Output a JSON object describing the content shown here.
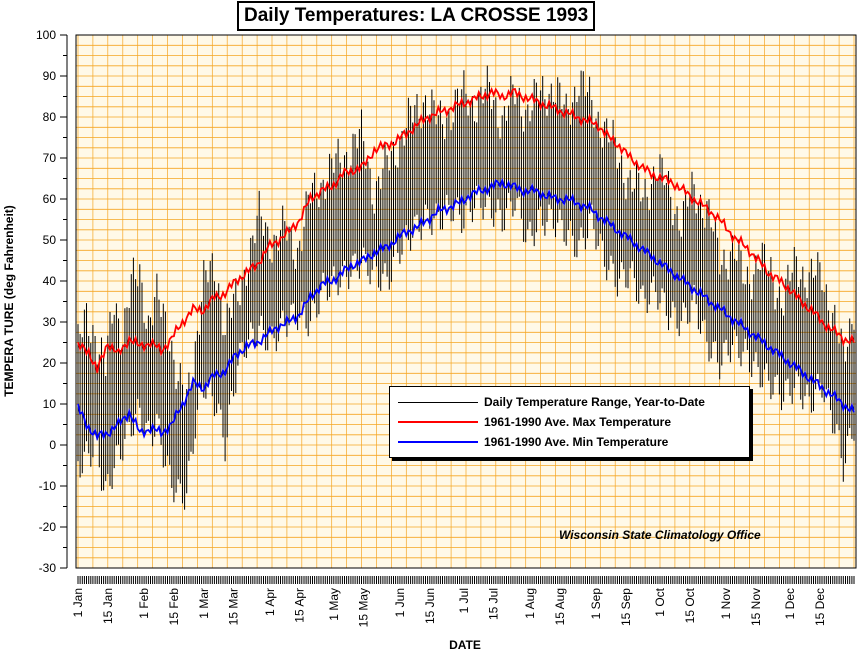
{
  "chart_data": {
    "type": "line",
    "title": "Daily Temperatures: LA CROSSE 1993",
    "xlabel": "DATE",
    "ylabel": "TEMPERA TURE (deg Fahrenheit)",
    "ylim": [
      -30,
      100
    ],
    "yticks": [
      -30,
      -20,
      -10,
      0,
      10,
      20,
      30,
      40,
      50,
      60,
      70,
      80,
      90,
      100
    ],
    "x_range_days": [
      1,
      365
    ],
    "xtick_labels": [
      "1 Jan",
      "15 Jan",
      "1 Feb",
      "15 Feb",
      "1 Mar",
      "15 Mar",
      "1 Apr",
      "15 Apr",
      "1 May",
      "15 May",
      "1 Jun",
      "15 Jun",
      "1 Jul",
      "15 Jul",
      "1 Aug",
      "15 Aug",
      "1 Sep",
      "15 Sep",
      "1 Oct",
      "15 Oct",
      "1 Nov",
      "15 Nov",
      "1 Dec",
      "15 Dec"
    ],
    "xtick_days": [
      1,
      15,
      32,
      46,
      60,
      74,
      91,
      105,
      121,
      135,
      152,
      166,
      182,
      196,
      213,
      227,
      244,
      258,
      274,
      288,
      305,
      319,
      335,
      349
    ],
    "grid": true,
    "legend_position": "lower-center",
    "colors": {
      "plot_bg": "#fff9e8",
      "grid": "#f5a623",
      "range": "#000000",
      "max": "#ff0000",
      "min": "#0000ff"
    },
    "series": [
      {
        "name": "Daily Temperature Range, Year-to-Date",
        "kind": "range",
        "color": "#000000",
        "anchors": {
          "days": [
            1,
            5,
            9,
            14,
            18,
            22,
            26,
            30,
            34,
            38,
            44,
            48,
            52,
            56,
            60,
            66,
            70,
            76,
            80,
            86,
            92,
            98,
            104,
            110,
            116,
            122,
            128,
            134,
            140,
            146,
            152,
            158,
            164,
            170,
            176,
            182,
            188,
            194,
            200,
            206,
            212,
            218,
            224,
            230,
            236,
            242,
            248,
            254,
            260,
            266,
            272,
            278,
            284,
            290,
            296,
            302,
            308,
            314,
            320,
            326,
            332,
            338,
            344,
            350,
            356,
            360,
            365
          ],
          "high": [
            24,
            30,
            28,
            18,
            35,
            28,
            38,
            42,
            30,
            35,
            28,
            15,
            10,
            25,
            40,
            42,
            30,
            35,
            45,
            55,
            50,
            52,
            48,
            60,
            65,
            68,
            72,
            75,
            62,
            68,
            75,
            80,
            85,
            78,
            82,
            85,
            84,
            86,
            80,
            85,
            82,
            85,
            88,
            80,
            90,
            82,
            78,
            70,
            65,
            60,
            68,
            62,
            55,
            62,
            58,
            45,
            48,
            40,
            45,
            42,
            35,
            45,
            40,
            42,
            30,
            20,
            35
          ],
          "low": [
            -5,
            -3,
            0,
            -12,
            -5,
            0,
            5,
            8,
            2,
            5,
            -8,
            -12,
            -12,
            5,
            15,
            10,
            0,
            20,
            25,
            28,
            25,
            30,
            32,
            30,
            38,
            40,
            42,
            45,
            42,
            40,
            48,
            52,
            55,
            55,
            58,
            55,
            60,
            58,
            55,
            60,
            50,
            55,
            55,
            52,
            48,
            55,
            45,
            40,
            42,
            35,
            38,
            32,
            30,
            35,
            25,
            20,
            25,
            22,
            18,
            15,
            12,
            15,
            10,
            15,
            5,
            -5,
            5
          ]
        }
      },
      {
        "name": "1961-1990 Ave. Max Temperature",
        "kind": "line",
        "color": "#ff0000",
        "anchors": {
          "days": [
            1,
            6,
            10,
            15,
            20,
            25,
            30,
            35,
            40,
            45,
            50,
            55,
            60,
            65,
            70,
            75,
            80,
            85,
            90,
            95,
            100,
            105,
            110,
            115,
            120,
            125,
            130,
            135,
            140,
            145,
            150,
            155,
            160,
            165,
            170,
            175,
            180,
            185,
            190,
            195,
            200,
            205,
            210,
            215,
            220,
            225,
            230,
            235,
            240,
            245,
            250,
            255,
            260,
            265,
            270,
            275,
            280,
            285,
            290,
            295,
            300,
            305,
            310,
            315,
            320,
            325,
            330,
            335,
            340,
            345,
            350,
            355,
            360,
            365
          ],
          "values": [
            24,
            23,
            18,
            25,
            22,
            26,
            24,
            25,
            23,
            26,
            30,
            33,
            33,
            36,
            37,
            40,
            42,
            44,
            48,
            50,
            52,
            55,
            60,
            62,
            63,
            66,
            67,
            68,
            72,
            73,
            74,
            76,
            78,
            80,
            81,
            82,
            83,
            84,
            85,
            86,
            85,
            86,
            85,
            84,
            83,
            82,
            81,
            80,
            79,
            78,
            75,
            73,
            70,
            68,
            66,
            65,
            64,
            62,
            60,
            58,
            56,
            53,
            50,
            48,
            45,
            42,
            40,
            38,
            35,
            33,
            30,
            28,
            26,
            25
          ]
        }
      },
      {
        "name": "1961-1990 Ave. Min Temperature",
        "kind": "line",
        "color": "#0000ff",
        "anchors": {
          "days": [
            1,
            5,
            10,
            15,
            20,
            25,
            30,
            35,
            40,
            45,
            50,
            55,
            60,
            65,
            70,
            75,
            80,
            85,
            90,
            95,
            100,
            105,
            110,
            115,
            120,
            125,
            130,
            135,
            140,
            145,
            150,
            155,
            160,
            165,
            170,
            175,
            180,
            185,
            190,
            195,
            200,
            205,
            210,
            215,
            220,
            225,
            230,
            235,
            240,
            245,
            250,
            255,
            260,
            265,
            270,
            275,
            280,
            285,
            290,
            295,
            300,
            305,
            310,
            315,
            320,
            325,
            330,
            335,
            340,
            345,
            350,
            355,
            360,
            365
          ],
          "values": [
            9,
            5,
            2,
            3,
            5,
            8,
            3,
            4,
            3,
            5,
            10,
            15,
            14,
            17,
            18,
            22,
            24,
            25,
            27,
            29,
            30,
            32,
            36,
            39,
            40,
            42,
            44,
            45,
            47,
            48,
            50,
            52,
            53,
            55,
            57,
            58,
            59,
            61,
            62,
            63,
            64,
            63,
            62,
            62,
            61,
            60,
            60,
            59,
            58,
            56,
            54,
            52,
            50,
            48,
            46,
            44,
            42,
            40,
            38,
            36,
            34,
            32,
            30,
            28,
            26,
            24,
            22,
            20,
            18,
            16,
            14,
            12,
            10,
            8
          ]
        }
      }
    ]
  },
  "legend": {
    "range_label": "Daily Temperature Range, Year-to-Date",
    "max_label": "1961-1990 Ave. Max Temperature",
    "min_label": "1961-1990 Ave. Min Temperature"
  },
  "credit": "Wisconsin State Climatology Office"
}
